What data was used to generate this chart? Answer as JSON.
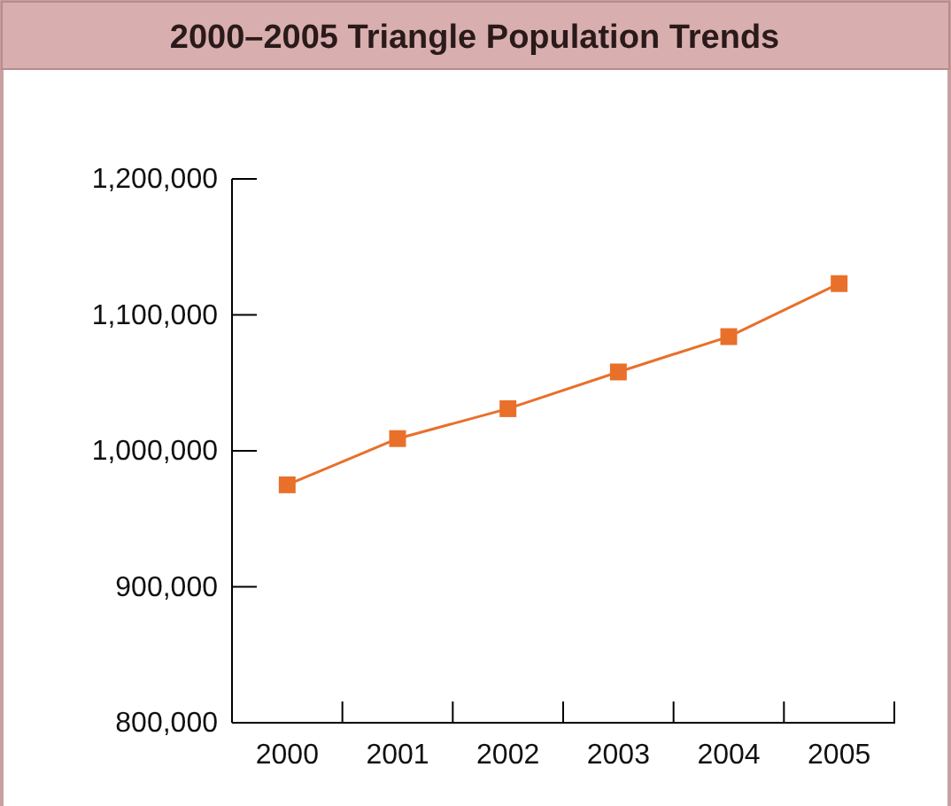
{
  "chart_data": {
    "type": "line",
    "title": "2000–2005 Triangle Population Trends",
    "categories": [
      "2000",
      "2001",
      "2002",
      "2003",
      "2004",
      "2005"
    ],
    "series": [
      {
        "color": "#e8702a",
        "values": [
          975000,
          1009000,
          1031000,
          1058000,
          1084000,
          1123000
        ]
      }
    ],
    "ylim": [
      800000,
      1200000
    ],
    "yticks": [
      {
        "value": 800000,
        "label": "800,000"
      },
      {
        "value": 900000,
        "label": "900,000"
      },
      {
        "value": 1000000,
        "label": "1,000,000"
      },
      {
        "value": 1100000,
        "label": "1,100,000"
      },
      {
        "value": 1200000,
        "label": "1,200,000"
      }
    ],
    "marker": "square",
    "line_style": "solid"
  }
}
